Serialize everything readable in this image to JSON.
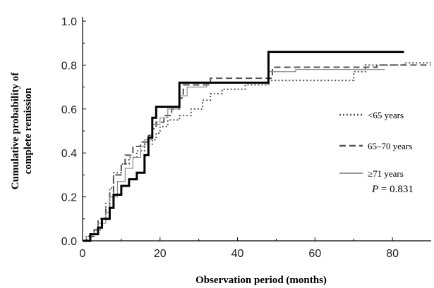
{
  "chart_data": {
    "type": "line",
    "subtype": "step",
    "title": "",
    "xlabel": "Observation period (months)",
    "ylabel_lines": [
      "Cumulative probability of",
      "complete remission"
    ],
    "xlim": [
      0,
      90
    ],
    "ylim": [
      0,
      1.0
    ],
    "x_ticks": [
      0,
      20,
      40,
      60,
      80
    ],
    "y_ticks": [
      0.0,
      0.2,
      0.4,
      0.6,
      0.8,
      1.0
    ],
    "y_tick_labels": [
      "0.0",
      "0.2",
      "0.4",
      "0.6",
      "0.8",
      "1.0"
    ],
    "grid": false,
    "legend_position": "right",
    "annotation": {
      "italic": "P",
      "text": " = 0.831"
    },
    "series": [
      {
        "name": "<65 years",
        "style": "dotted",
        "color": "#555555",
        "points": [
          [
            0,
            0
          ],
          [
            1,
            0.02
          ],
          [
            3,
            0.05
          ],
          [
            5,
            0.1
          ],
          [
            6,
            0.17
          ],
          [
            7,
            0.24
          ],
          [
            8,
            0.31
          ],
          [
            10,
            0.35
          ],
          [
            12,
            0.38
          ],
          [
            14,
            0.41
          ],
          [
            16,
            0.44
          ],
          [
            18,
            0.46
          ],
          [
            19,
            0.49
          ],
          [
            20,
            0.52
          ],
          [
            22,
            0.55
          ],
          [
            25,
            0.57
          ],
          [
            28,
            0.6
          ],
          [
            31,
            0.64
          ],
          [
            33,
            0.67
          ],
          [
            36,
            0.69
          ],
          [
            42,
            0.71
          ],
          [
            48,
            0.73
          ],
          [
            56,
            0.73
          ],
          [
            67,
            0.73
          ],
          [
            70,
            0.77
          ],
          [
            73,
            0.8
          ],
          [
            80,
            0.8
          ],
          [
            83,
            0.81
          ],
          [
            90,
            0.81
          ]
        ]
      },
      {
        "name": "65–70 years",
        "style": "dashed",
        "color": "#555555",
        "points": [
          [
            0,
            0
          ],
          [
            1,
            0.02
          ],
          [
            3,
            0.05
          ],
          [
            4,
            0.1
          ],
          [
            6,
            0.15
          ],
          [
            7,
            0.22
          ],
          [
            8,
            0.3
          ],
          [
            10,
            0.35
          ],
          [
            11,
            0.39
          ],
          [
            13,
            0.43
          ],
          [
            15,
            0.45
          ],
          [
            17,
            0.48
          ],
          [
            18,
            0.51
          ],
          [
            19,
            0.54
          ],
          [
            21,
            0.57
          ],
          [
            23,
            0.6
          ],
          [
            25,
            0.65
          ],
          [
            26,
            0.71
          ],
          [
            33,
            0.74
          ],
          [
            49,
            0.79
          ],
          [
            76,
            0.8
          ],
          [
            90,
            0.8
          ]
        ]
      },
      {
        "name": "≥71 years",
        "style": "solid-thin",
        "color": "#777777",
        "points": [
          [
            0,
            0
          ],
          [
            2,
            0.03
          ],
          [
            4,
            0.08
          ],
          [
            6,
            0.13
          ],
          [
            7,
            0.2
          ],
          [
            9,
            0.27
          ],
          [
            11,
            0.33
          ],
          [
            13,
            0.38
          ],
          [
            15,
            0.43
          ],
          [
            16,
            0.46
          ],
          [
            18,
            0.53
          ],
          [
            20,
            0.56
          ],
          [
            22,
            0.6
          ],
          [
            25,
            0.66
          ],
          [
            27,
            0.7
          ],
          [
            32,
            0.72
          ],
          [
            48,
            0.77
          ],
          [
            55,
            0.78
          ],
          [
            78,
            0.78
          ]
        ]
      },
      {
        "name": "",
        "style": "solid-thick",
        "color": "#000000",
        "points": [
          [
            0,
            0
          ],
          [
            2,
            0.03
          ],
          [
            4,
            0.06
          ],
          [
            5,
            0.1
          ],
          [
            7,
            0.15
          ],
          [
            8,
            0.21
          ],
          [
            10,
            0.25
          ],
          [
            12,
            0.28
          ],
          [
            14,
            0.31
          ],
          [
            16,
            0.39
          ],
          [
            17,
            0.47
          ],
          [
            18,
            0.56
          ],
          [
            19,
            0.61
          ],
          [
            25,
            0.72
          ],
          [
            48,
            0.86
          ],
          [
            83,
            0.86
          ]
        ]
      }
    ],
    "legend": [
      {
        "label": "<65 years",
        "style": "dotted"
      },
      {
        "label": "65–70 years",
        "style": "dashed"
      },
      {
        "label": "≥71 years",
        "style": "solid-thin"
      }
    ]
  }
}
